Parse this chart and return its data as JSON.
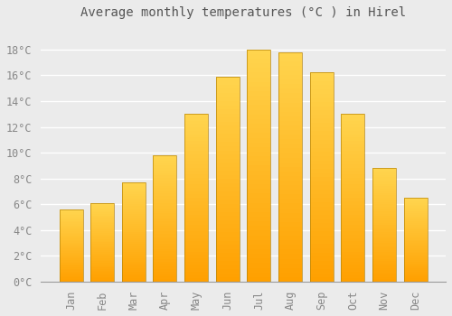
{
  "title": "Average monthly temperatures (°C ) in Hirel",
  "months": [
    "Jan",
    "Feb",
    "Mar",
    "Apr",
    "May",
    "Jun",
    "Jul",
    "Aug",
    "Sep",
    "Oct",
    "Nov",
    "Dec"
  ],
  "values": [
    5.6,
    6.1,
    7.7,
    9.8,
    13.0,
    15.9,
    18.0,
    17.8,
    16.2,
    13.0,
    8.8,
    6.5
  ],
  "bar_color_top": "#FFD54F",
  "bar_color_bottom": "#FFA000",
  "bar_edge_color": "#B8860B",
  "background_color": "#EBEBEB",
  "grid_color": "#FFFFFF",
  "ytick_labels": [
    "0°C",
    "2°C",
    "4°C",
    "6°C",
    "8°C",
    "10°C",
    "12°C",
    "14°C",
    "16°C",
    "18°C"
  ],
  "ytick_values": [
    0,
    2,
    4,
    6,
    8,
    10,
    12,
    14,
    16,
    18
  ],
  "ylim": [
    0,
    19.8
  ],
  "title_fontsize": 10,
  "tick_fontsize": 8.5,
  "font_color": "#888888",
  "title_color": "#555555",
  "bar_width": 0.75
}
